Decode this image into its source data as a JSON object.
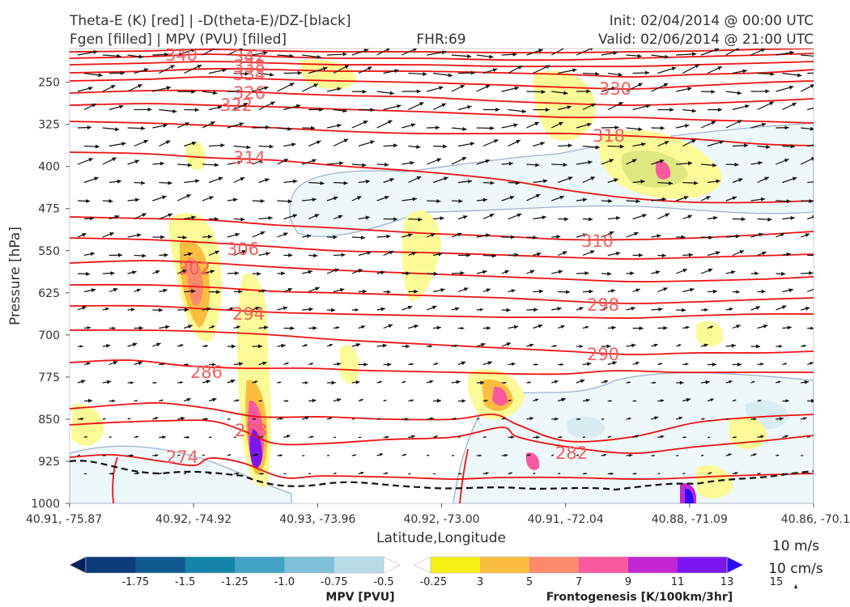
{
  "header": {
    "title_line1": "Theta-E (K) [red] | -D(theta-E)/DZ-[black]",
    "title_line2": "Fgen [filled] | MPV (PVU) [filled]",
    "fhr": "FHR:69",
    "init": "Init: 02/04/2014 @ 00:00 UTC",
    "valid": "Valid: 02/06/2014 @ 21:00 UTC"
  },
  "chart_data": {
    "type": "cross-section",
    "xlabel": "Latitude,Longitude",
    "ylabel": "Pressure [hPa]",
    "x_ticks": [
      "40.91, -75.87",
      "40.92, -74.92",
      "40.93, -73.96",
      "40.92, -73.00",
      "40.91, -72.04",
      "40.88, -71.09",
      "40.86, -70.1"
    ],
    "y_ticks": [
      250,
      325,
      400,
      475,
      550,
      625,
      700,
      775,
      850,
      925,
      1000
    ],
    "ylim": [
      1000,
      190
    ],
    "y_scale": "linear-inverted",
    "theta_e_contours": [
      {
        "value": 274,
        "label": "274"
      },
      {
        "value": 278,
        "label": "278"
      },
      {
        "value": 282,
        "label": "282"
      },
      {
        "value": 286,
        "label": "286"
      },
      {
        "value": 290,
        "label": "290"
      },
      {
        "value": 294,
        "label": "294"
      },
      {
        "value": 298,
        "label": "298"
      },
      {
        "value": 302,
        "label": "302"
      },
      {
        "value": 306,
        "label": "306"
      },
      {
        "value": 310,
        "label": "310"
      },
      {
        "value": 314,
        "label": "314"
      },
      {
        "value": 318,
        "label": "318"
      },
      {
        "value": 322,
        "label": "322"
      },
      {
        "value": 326,
        "label": "326"
      },
      {
        "value": 330,
        "label": "330"
      },
      {
        "value": 334,
        "label": "334"
      },
      {
        "value": 338,
        "label": "338"
      },
      {
        "value": 340,
        "label": "340"
      },
      {
        "value": 342,
        "label": "342"
      }
    ],
    "wind_reference": {
      "horizontal": "10 m/s",
      "vertical": "10 cm/s"
    },
    "colorbars": {
      "mpv": {
        "label": "MPV [PVU]",
        "ticks": [
          "-1.75",
          "-1.5",
          "-1.25",
          "-1.0",
          "-0.75",
          "-0.5",
          "-0.25"
        ],
        "colors": [
          "#08215e",
          "#0c3b7a",
          "#0f5a8f",
          "#1683a8",
          "#41a3c4",
          "#7ec0d8",
          "#b9dbe6",
          "#ffffff"
        ]
      },
      "fgen": {
        "label": "Frontogenesis [K/100km/3hr]",
        "ticks": [
          "3",
          "5",
          "7",
          "9",
          "11",
          "13",
          "15"
        ],
        "colors": [
          "#ffffff",
          "#f8f014",
          "#fbbd40",
          "#fb8a6c",
          "#f85aa0",
          "#c125d4",
          "#7b16ee",
          "#2a0cf6"
        ]
      }
    }
  }
}
